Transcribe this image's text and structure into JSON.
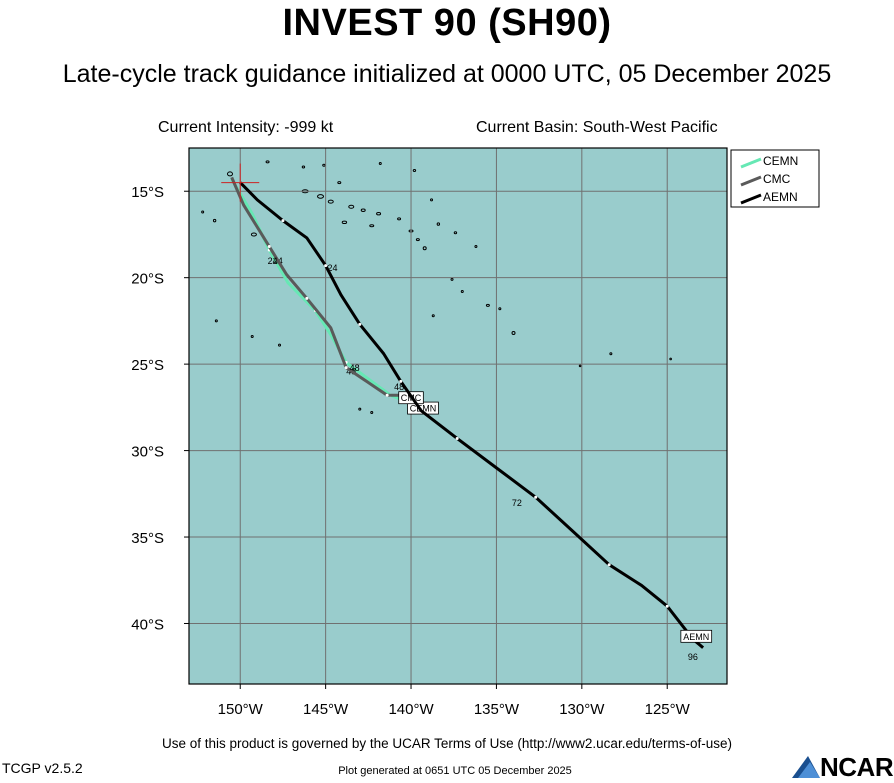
{
  "title": "INVEST 90 (SH90)",
  "subtitle": "Late-cycle track guidance initialized at 0000 UTC, 05 December 2025",
  "current_intensity": "Current Intensity: -999 kt",
  "current_basin": "Current Basin: South-West Pacific",
  "footer_terms": "Use of this product is governed by the UCAR Terms of Use (http://www2.ucar.edu/terms-of-use)",
  "version": "TCGP v2.5.2",
  "generated": "Plot generated at 0651 UTC   05 December 2025",
  "logo_text": "NCAR",
  "colors": {
    "ocean": "#99cccc",
    "grid": "#707070",
    "CEMN": "#66e8b4",
    "CMC": "#5a5a5a",
    "AEMN": "#000000",
    "initial_position_marker": "#cc2222"
  },
  "map": {
    "lon_range": [
      -153,
      -121.5
    ],
    "lat_range": [
      -43.5,
      -12.5
    ],
    "lon_ticks": [
      {
        "value": -150,
        "label": "150°W"
      },
      {
        "value": -145,
        "label": "145°W"
      },
      {
        "value": -140,
        "label": "140°W"
      },
      {
        "value": -135,
        "label": "135°W"
      },
      {
        "value": -130,
        "label": "130°W"
      },
      {
        "value": -125,
        "label": "125°W"
      }
    ],
    "lat_ticks": [
      {
        "value": -15,
        "label": "15°S"
      },
      {
        "value": -20,
        "label": "20°S"
      },
      {
        "value": -25,
        "label": "25°S"
      },
      {
        "value": -30,
        "label": "30°S"
      },
      {
        "value": -35,
        "label": "35°S"
      },
      {
        "value": -40,
        "label": "40°S"
      }
    ],
    "initial_position": {
      "lon": -150,
      "lat": -14.5
    }
  },
  "legend": [
    {
      "name": "CEMN",
      "color": "#66e8b4"
    },
    {
      "name": "CMC",
      "color": "#5a5a5a"
    },
    {
      "name": "AEMN",
      "color": "#000000"
    }
  ],
  "tracks": [
    {
      "name": "CEMN",
      "color": "#66e8b4",
      "points": [
        [
          -150.5,
          -14.3
        ],
        [
          -149.3,
          -16.3
        ],
        [
          -148.3,
          -18.4
        ],
        [
          -147.2,
          -20.3
        ],
        [
          -145.6,
          -21.9
        ],
        [
          -144.7,
          -23.3
        ],
        [
          -143.8,
          -24.9
        ],
        [
          -142.3,
          -26.0
        ],
        [
          -141.2,
          -26.8
        ],
        [
          -140.2,
          -27.2
        ]
      ],
      "hour_labels": [
        {
          "text": "24",
          "lon": -147.8,
          "lat": -19.2
        },
        {
          "text": "48",
          "lon": -143.5,
          "lat": -25.6
        }
      ],
      "end_tag": {
        "text": "CEMN",
        "lon": -139.3,
        "lat": -27.6
      }
    },
    {
      "name": "CMC",
      "color": "#5a5a5a",
      "points": [
        [
          -150.5,
          -14.2
        ],
        [
          -149.8,
          -15.8
        ],
        [
          -148.3,
          -18.2
        ],
        [
          -147.3,
          -19.8
        ],
        [
          -146.1,
          -21.2
        ],
        [
          -144.7,
          -22.9
        ],
        [
          -143.8,
          -25.2
        ],
        [
          -142.6,
          -26.0
        ],
        [
          -141.4,
          -26.8
        ],
        [
          -140.5,
          -26.8
        ]
      ],
      "hour_labels": [
        {
          "text": "24",
          "lon": -148.1,
          "lat": -19.2
        },
        {
          "text": "48",
          "lon": -143.3,
          "lat": -25.4
        }
      ],
      "end_tag": {
        "text": "CMC",
        "lon": -140.0,
        "lat": -27.0
      }
    },
    {
      "name": "AEMN",
      "color": "#000000",
      "points": [
        [
          -150.0,
          -14.5
        ],
        [
          -149.0,
          -15.5
        ],
        [
          -147.5,
          -16.7
        ],
        [
          -146.1,
          -17.7
        ],
        [
          -145.0,
          -19.3
        ],
        [
          -144.1,
          -21.0
        ],
        [
          -143.0,
          -22.7
        ],
        [
          -141.6,
          -24.4
        ],
        [
          -140.6,
          -26.0
        ],
        [
          -139.4,
          -27.7
        ],
        [
          -137.3,
          -29.3
        ],
        [
          -135.0,
          -31.0
        ],
        [
          -132.7,
          -32.7
        ],
        [
          -130.6,
          -34.6
        ],
        [
          -128.4,
          -36.6
        ],
        [
          -126.5,
          -37.8
        ],
        [
          -125.0,
          -39.0
        ],
        [
          -123.5,
          -40.9
        ],
        [
          -122.9,
          -41.4
        ]
      ],
      "hour_labels": [
        {
          "text": "24",
          "lon": -144.6,
          "lat": -19.6
        },
        {
          "text": "48",
          "lon": -140.7,
          "lat": -26.5
        },
        {
          "text": "72",
          "lon": -133.8,
          "lat": -33.2
        },
        {
          "text": "96",
          "lon": -123.5,
          "lat": -42.1
        }
      ],
      "end_tag": {
        "text": "AEMN",
        "lon": -123.3,
        "lat": -40.8
      }
    }
  ]
}
